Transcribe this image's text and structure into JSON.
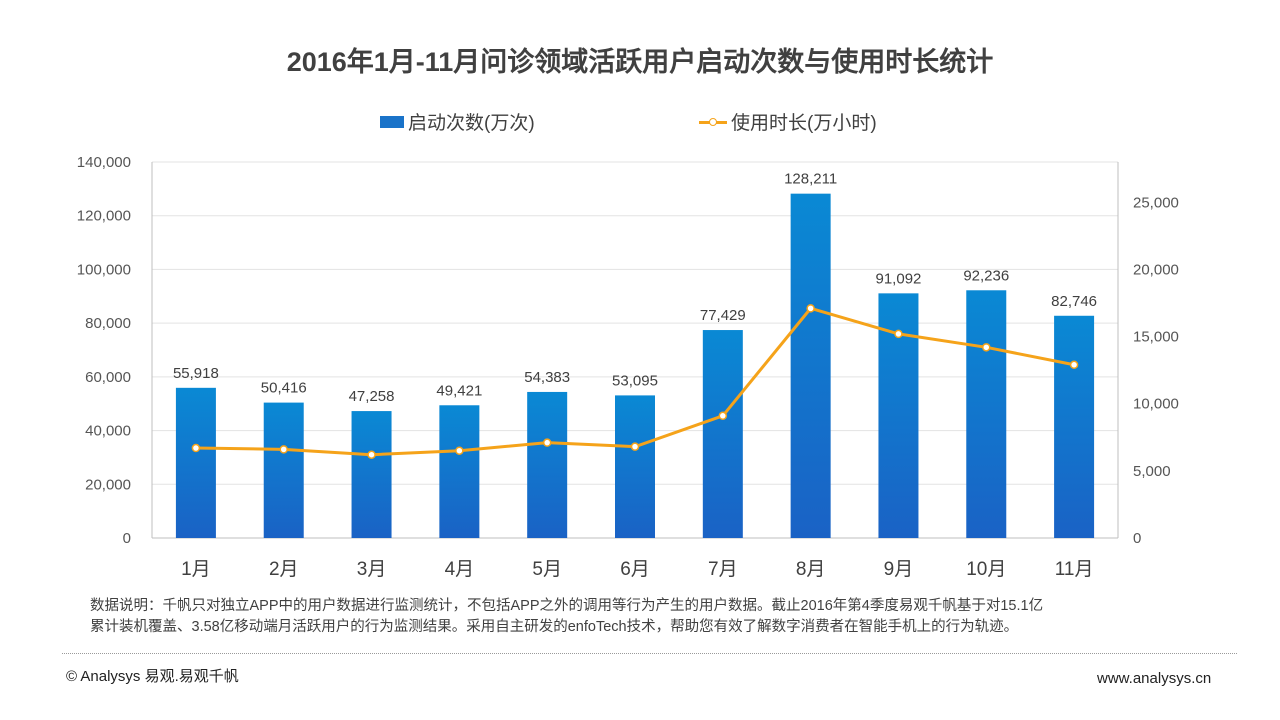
{
  "title": "2016年1月-11月问诊领域活跃用户启动次数与使用时长统计",
  "legend": {
    "bar_label": "启动次数(万次)",
    "line_label": "使用时长(万小时)"
  },
  "colors": {
    "bar_top": "#0a89d4",
    "bar_bottom": "#1a62c5",
    "line": "#f5a31a",
    "grid": "#e3e3e3",
    "axis_text": "#555555"
  },
  "chart_data": {
    "type": "bar+line",
    "title": "2016年1月-11月问诊领域活跃用户启动次数与使用时长统计",
    "categories": [
      "1月",
      "2月",
      "3月",
      "4月",
      "5月",
      "6月",
      "7月",
      "8月",
      "9月",
      "10月",
      "11月"
    ],
    "series": [
      {
        "name": "启动次数(万次)",
        "type": "bar",
        "axis": "left",
        "values": [
          55918,
          50416,
          47258,
          49421,
          54383,
          53095,
          77429,
          128211,
          91092,
          92236,
          82746
        ],
        "labels": [
          "55,918",
          "50,416",
          "47,258",
          "49,421",
          "54,383",
          "53,095",
          "77,429",
          "128,211",
          "91,092",
          "92,236",
          "82,746"
        ]
      },
      {
        "name": "使用时长(万小时)",
        "type": "line",
        "axis": "right",
        "values": [
          6700,
          6600,
          6200,
          6500,
          7100,
          6800,
          9100,
          17100,
          15200,
          14200,
          12900
        ]
      }
    ],
    "y_left": {
      "lim": [
        0,
        140000
      ],
      "ticks": [
        0,
        20000,
        40000,
        60000,
        80000,
        100000,
        120000,
        140000
      ],
      "tick_labels": [
        "0",
        "20,000",
        "40,000",
        "60,000",
        "80,000",
        "100,000",
        "120,000",
        "140,000"
      ]
    },
    "y_right": {
      "lim": [
        0,
        28000
      ],
      "ticks": [
        0,
        5000,
        10000,
        15000,
        20000,
        25000
      ],
      "tick_labels": [
        "0",
        "5,000",
        "10,000",
        "15,000",
        "20,000",
        "25,000"
      ]
    },
    "grid": true,
    "legend_position": "top-center"
  },
  "note": {
    "line1": "数据说明：千帆只对独立APP中的用户数据进行监测统计，不包括APP之外的调用等行为产生的用户数据。截止2016年第4季度易观千帆基于对15.1亿",
    "line2": "累计装机覆盖、3.58亿移动端月活跃用户的行为监测结果。采用自主研发的enfoTech技术，帮助您有效了解数字消费者在智能手机上的行为轨迹。"
  },
  "footer": {
    "left": "© Analysys 易观.易观千帆",
    "right": "www.analysys.cn"
  }
}
